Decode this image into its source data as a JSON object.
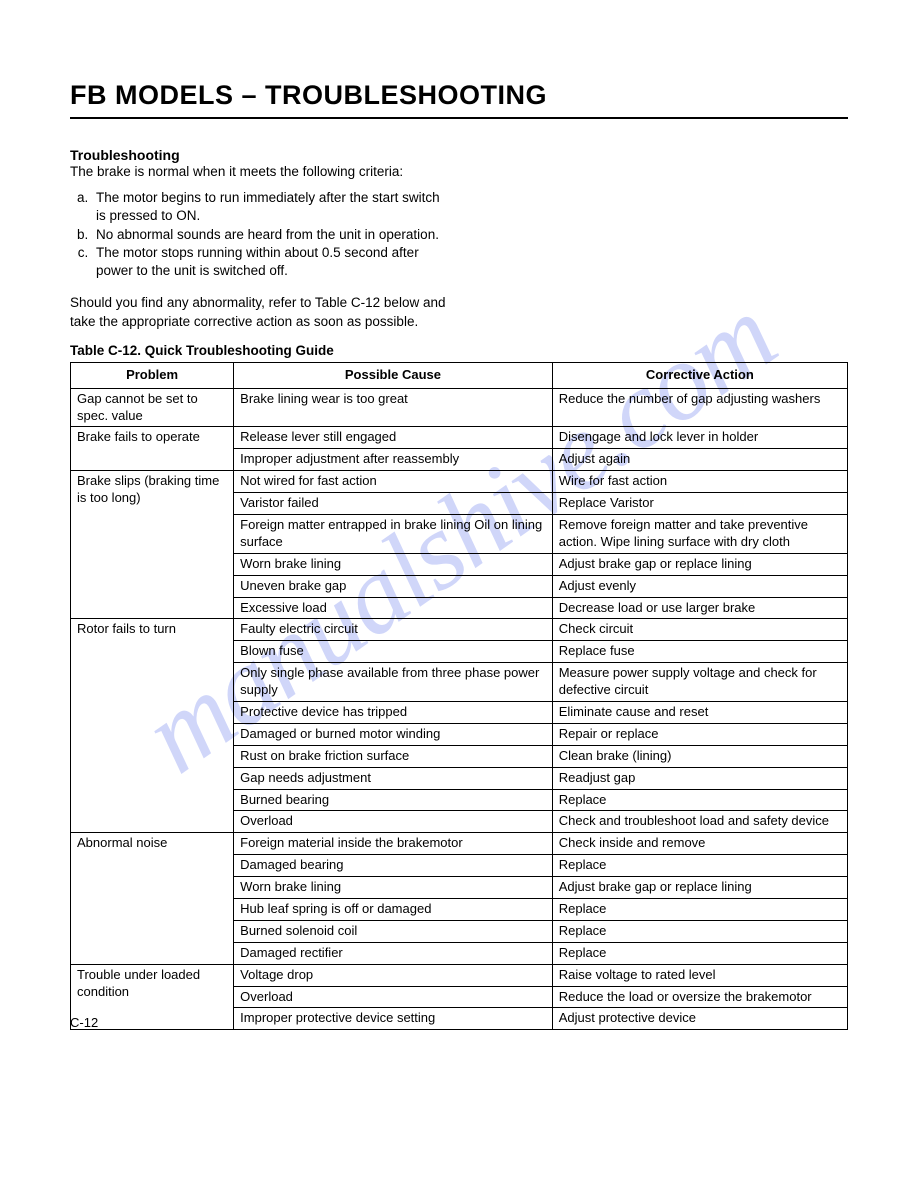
{
  "watermark": "manualshive.com",
  "title": "FB MODELS – TROUBLESHOOTING",
  "section_heading": "Troubleshooting",
  "intro": "The brake is normal when it meets the following criteria:",
  "criteria": [
    "The motor begins to run immediately after the start switch is pressed to ON.",
    "No abnormal sounds are heard from the unit in operation.",
    "The motor stops running within about 0.5 second after power to the unit is switched off."
  ],
  "note": "Should you find any abnormality, refer to Table C-12 below and take the appropriate corrective action as soon as possible.",
  "table_caption": "Table C-12.  Quick Troubleshooting Guide",
  "headers": {
    "problem": "Problem",
    "cause": "Possible Cause",
    "action": "Corrective Action"
  },
  "rows": [
    {
      "problem": "Gap cannot be set to spec. value",
      "rowspan": 1,
      "cause": "Brake lining wear is too great",
      "action": "Reduce the number of gap adjusting washers"
    },
    {
      "problem": "Brake fails to operate",
      "rowspan": 2,
      "cause": "Release lever still engaged",
      "action": "Disengage and lock lever in holder"
    },
    {
      "cause": "Improper adjustment after reassembly",
      "action": "Adjust again"
    },
    {
      "problem": "Brake slips (braking time is too long)",
      "rowspan": 6,
      "cause": "Not wired for fast action",
      "action": "Wire for fast action"
    },
    {
      "cause": "Varistor failed",
      "action": "Replace Varistor"
    },
    {
      "cause": "Foreign matter entrapped in brake lining Oil on lining surface",
      "action": "Remove foreign matter and take preventive action. Wipe lining surface with dry cloth"
    },
    {
      "cause": "Worn brake lining",
      "action": "Adjust brake gap or replace lining"
    },
    {
      "cause": "Uneven brake gap",
      "action": "Adjust evenly"
    },
    {
      "cause": "Excessive load",
      "action": "Decrease load or use larger brake"
    },
    {
      "problem": "Rotor fails to turn",
      "rowspan": 9,
      "cause": "Faulty electric circuit",
      "action": "Check circuit"
    },
    {
      "cause": "Blown fuse",
      "action": "Replace fuse"
    },
    {
      "cause": "Only single phase available from three phase power supply",
      "action": "Measure power supply voltage and check for defective circuit"
    },
    {
      "cause": "Protective device has tripped",
      "action": "Eliminate cause and reset"
    },
    {
      "cause": "Damaged or burned motor winding",
      "action": "Repair or replace"
    },
    {
      "cause": "Rust on brake friction surface",
      "action": "Clean brake (lining)"
    },
    {
      "cause": "Gap needs adjustment",
      "action": "Readjust gap"
    },
    {
      "cause": "Burned bearing",
      "action": "Replace"
    },
    {
      "cause": "Overload",
      "action": "Check and troubleshoot load and safety device"
    },
    {
      "problem": "Abnormal noise",
      "rowspan": 6,
      "cause": "Foreign material inside the brakemotor",
      "action": "Check inside and remove"
    },
    {
      "cause": "Damaged bearing",
      "action": "Replace"
    },
    {
      "cause": "Worn brake lining",
      "action": "Adjust brake gap or replace lining"
    },
    {
      "cause": "Hub leaf spring is off or damaged",
      "action": "Replace"
    },
    {
      "cause": "Burned solenoid coil",
      "action": "Replace"
    },
    {
      "cause": "Damaged rectifier",
      "action": "Replace"
    },
    {
      "problem": "Trouble under loaded condition",
      "rowspan": 3,
      "cause": "Voltage drop",
      "action": "Raise voltage to rated level"
    },
    {
      "cause": "Overload",
      "action": "Reduce the load or oversize the brakemotor"
    },
    {
      "cause": "Improper protective device setting",
      "action": "Adjust protective device"
    }
  ],
  "page_number": "C-12"
}
